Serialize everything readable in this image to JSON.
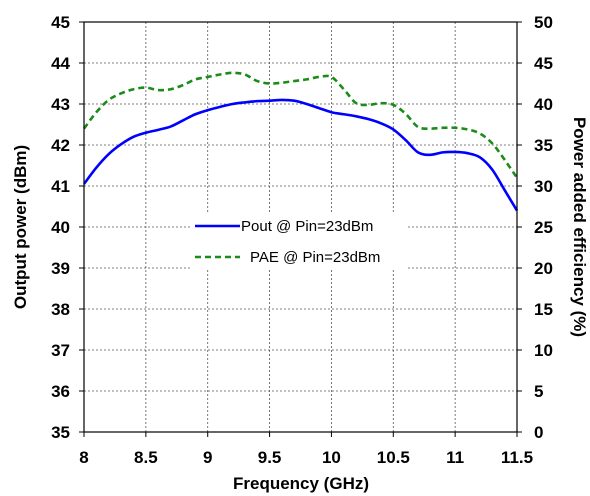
{
  "chart_data": {
    "type": "line",
    "xlabel": "Frequency (GHz)",
    "ylabel": "Output power (dBm)",
    "y2label": "Power added efficiency (%)",
    "xlim": [
      8,
      11.5
    ],
    "ylim": [
      35,
      45
    ],
    "y2lim": [
      0,
      50
    ],
    "x_ticks": [
      "8",
      "8.5",
      "9",
      "9.5",
      "10",
      "10.5",
      "11",
      "11.5"
    ],
    "y_ticks": [
      "35",
      "36",
      "37",
      "38",
      "39",
      "40",
      "41",
      "42",
      "43",
      "44",
      "45"
    ],
    "y2_ticks": [
      "0",
      "5",
      "10",
      "15",
      "20",
      "25",
      "30",
      "35",
      "40",
      "45",
      "50"
    ],
    "grid": true,
    "legend_position": "center",
    "series": [
      {
        "name": "Pout @ Pin=23dBm",
        "axis": "left",
        "color": "#0000ff",
        "style": "solid",
        "x": [
          8.0,
          8.1,
          8.2,
          8.3,
          8.4,
          8.5,
          8.6,
          8.7,
          8.8,
          8.9,
          9.0,
          9.1,
          9.2,
          9.3,
          9.4,
          9.5,
          9.6,
          9.7,
          9.8,
          9.9,
          10.0,
          10.1,
          10.2,
          10.3,
          10.4,
          10.5,
          10.6,
          10.7,
          10.8,
          10.9,
          11.0,
          11.1,
          11.2,
          11.3,
          11.4,
          11.5
        ],
        "y": [
          41.05,
          41.45,
          41.78,
          42.02,
          42.2,
          42.3,
          42.37,
          42.45,
          42.6,
          42.75,
          42.85,
          42.93,
          43.0,
          43.04,
          43.07,
          43.08,
          43.1,
          43.08,
          43.0,
          42.9,
          42.8,
          42.75,
          42.7,
          42.63,
          42.53,
          42.38,
          42.12,
          41.82,
          41.76,
          41.82,
          41.83,
          41.8,
          41.7,
          41.4,
          40.9,
          40.4
        ]
      },
      {
        "name": "PAE @ Pin=23dBm",
        "axis": "right",
        "color": "#1a8c1a",
        "style": "dashed",
        "x": [
          8.0,
          8.1,
          8.2,
          8.3,
          8.4,
          8.5,
          8.6,
          8.7,
          8.8,
          8.9,
          9.0,
          9.1,
          9.2,
          9.3,
          9.4,
          9.5,
          9.6,
          9.7,
          9.8,
          9.9,
          10.0,
          10.1,
          10.2,
          10.3,
          10.4,
          10.5,
          10.6,
          10.7,
          10.8,
          10.9,
          11.0,
          11.1,
          11.2,
          11.3,
          11.4,
          11.5
        ],
        "y": [
          37.0,
          39.0,
          40.5,
          41.3,
          41.8,
          42.0,
          41.7,
          41.8,
          42.3,
          43.0,
          43.3,
          43.6,
          43.8,
          43.6,
          42.8,
          42.5,
          42.6,
          42.8,
          43.0,
          43.3,
          43.3,
          41.8,
          40.1,
          39.9,
          40.1,
          39.9,
          38.8,
          37.2,
          37.0,
          37.1,
          37.1,
          36.9,
          36.4,
          35.2,
          33.2,
          31.0
        ]
      }
    ]
  }
}
